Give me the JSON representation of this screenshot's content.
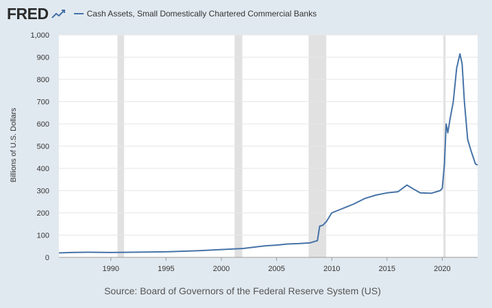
{
  "header": {
    "logo_text": "FRED",
    "logo_icon": "line-chart-icon",
    "legend_label": "Cash Assets, Small Domestically Chartered Commercial Banks"
  },
  "source": "Source: Board of Governors of the Federal Reserve System (US)",
  "colors": {
    "series": "#4572a7",
    "background": "#e1e9f0",
    "plot": "#ffffff",
    "recession": "#e1e1e1",
    "grid": "#e6e6e6"
  },
  "chart_data": {
    "type": "line",
    "title": "",
    "xlabel": "",
    "ylabel": "Billions of U.S. Dollars",
    "xlim": [
      1985.3,
      2023.2
    ],
    "ylim": [
      0,
      1000
    ],
    "grid": true,
    "legend_position": "top-left",
    "x_ticks": [
      1990,
      1995,
      2000,
      2005,
      2010,
      2015,
      2020
    ],
    "x_tick_labels": [
      "1990",
      "1995",
      "2000",
      "2005",
      "2010",
      "2015",
      "2020"
    ],
    "y_ticks": [
      0,
      100,
      200,
      300,
      400,
      500,
      600,
      700,
      800,
      900,
      1000
    ],
    "y_tick_labels": [
      "0",
      "100",
      "200",
      "300",
      "400",
      "500",
      "600",
      "700",
      "800",
      "900",
      "1,000"
    ],
    "recessions": [
      [
        1990.6,
        1991.2
      ],
      [
        2001.2,
        2001.9
      ],
      [
        2007.9,
        2009.5
      ],
      [
        2020.1,
        2020.3
      ]
    ],
    "series": [
      {
        "name": "Cash Assets, Small Domestically Chartered Commercial Banks",
        "color": "#4572a7",
        "x": [
          1985.3,
          1986.5,
          1988,
          1990,
          1992,
          1995,
          1998,
          2000,
          2002,
          2004,
          2005,
          2006,
          2007,
          2008,
          2008.7,
          2008.9,
          2009.2,
          2009.5,
          2010,
          2011,
          2012,
          2013,
          2014,
          2015,
          2016,
          2016.8,
          2017.3,
          2018,
          2019,
          2019.8,
          2020.0,
          2020.2,
          2020.35,
          2020.5,
          2020.7,
          2021.0,
          2021.3,
          2021.6,
          2021.8,
          2022.0,
          2022.3,
          2022.6,
          2023.0,
          2023.2
        ],
        "y": [
          20,
          22,
          23,
          22,
          23,
          25,
          30,
          35,
          40,
          52,
          55,
          60,
          62,
          65,
          75,
          140,
          145,
          160,
          200,
          220,
          240,
          265,
          280,
          290,
          295,
          325,
          310,
          290,
          288,
          300,
          310,
          420,
          600,
          560,
          620,
          700,
          850,
          915,
          870,
          700,
          530,
          480,
          420,
          415
        ]
      }
    ]
  }
}
